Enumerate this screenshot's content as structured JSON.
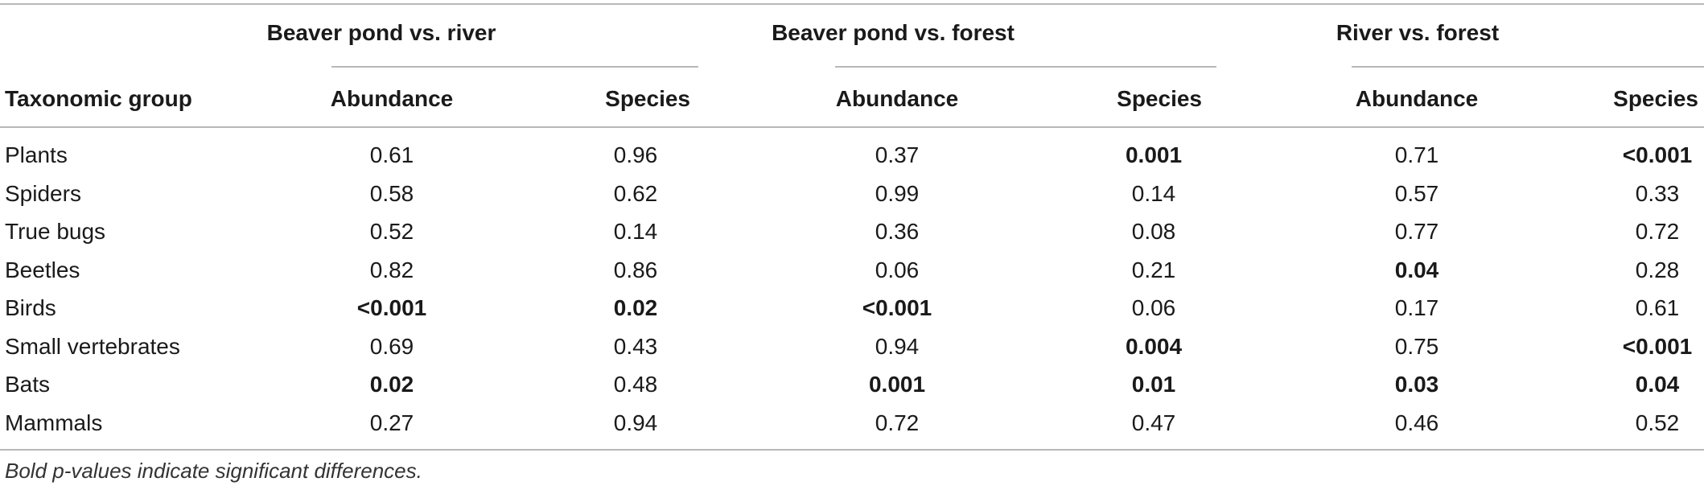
{
  "table": {
    "group_headers": [
      "Beaver pond vs. river",
      "Beaver pond vs. forest",
      "River vs. forest"
    ],
    "column_headers": [
      "Taxonomic group",
      "Abundance",
      "Species",
      "Abundance",
      "Species",
      "Abundance",
      "Species"
    ],
    "rows": [
      {
        "group": "Plants",
        "values": [
          "0.61",
          "0.96",
          "0.37",
          "0.001",
          "0.71",
          "<0.001"
        ],
        "bold": [
          false,
          false,
          false,
          true,
          false,
          true
        ]
      },
      {
        "group": "Spiders",
        "values": [
          "0.58",
          "0.62",
          "0.99",
          "0.14",
          "0.57",
          "0.33"
        ],
        "bold": [
          false,
          false,
          false,
          false,
          false,
          false
        ]
      },
      {
        "group": "True bugs",
        "values": [
          "0.52",
          "0.14",
          "0.36",
          "0.08",
          "0.77",
          "0.72"
        ],
        "bold": [
          false,
          false,
          false,
          false,
          false,
          false
        ]
      },
      {
        "group": "Beetles",
        "values": [
          "0.82",
          "0.86",
          "0.06",
          "0.21",
          "0.04",
          "0.28"
        ],
        "bold": [
          false,
          false,
          false,
          false,
          true,
          false
        ]
      },
      {
        "group": "Birds",
        "values": [
          "<0.001",
          "0.02",
          "<0.001",
          "0.06",
          "0.17",
          "0.61"
        ],
        "bold": [
          true,
          true,
          true,
          false,
          false,
          false
        ]
      },
      {
        "group": "Small vertebrates",
        "values": [
          "0.69",
          "0.43",
          "0.94",
          "0.004",
          "0.75",
          "<0.001"
        ],
        "bold": [
          false,
          false,
          false,
          true,
          false,
          true
        ]
      },
      {
        "group": "Bats",
        "values": [
          "0.02",
          "0.48",
          "0.001",
          "0.01",
          "0.03",
          "0.04"
        ],
        "bold": [
          true,
          false,
          true,
          true,
          true,
          true
        ]
      },
      {
        "group": "Mammals",
        "values": [
          "0.27",
          "0.94",
          "0.72",
          "0.47",
          "0.46",
          "0.52"
        ],
        "bold": [
          false,
          false,
          false,
          false,
          false,
          false
        ]
      }
    ],
    "footnote": "Bold p-values indicate significant differences."
  }
}
